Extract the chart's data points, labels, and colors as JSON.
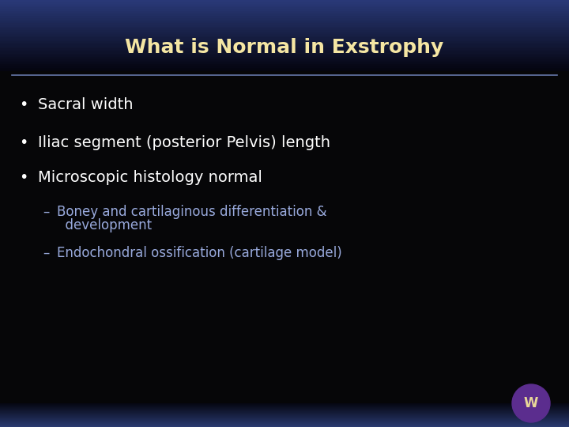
{
  "title": "What is Normal in Exstrophy",
  "title_color": "#F5E6A3",
  "title_fontsize": 18,
  "title_bg_color": "#2A3A7A",
  "separator_color": "#6677AA",
  "background_color": "#060608",
  "bullet_color": "#FFFFFF",
  "bullet_fontsize": 14,
  "sub_bullet_color": "#99AADD",
  "sub_bullet_fontsize": 12,
  "bullets": [
    "Sacral width",
    "Iliac segment (posterior Pelvis) length",
    "Microscopic histology normal"
  ],
  "sub_bullet_line1": "Boney and cartilaginous differentiation &",
  "sub_bullet_line2": "  development",
  "sub_bullet_3": "Endochondral ossification (cartilage model)",
  "logo_circle_color": "#5B2D8E",
  "logo_text": "W",
  "logo_text_color": "#E8D898"
}
